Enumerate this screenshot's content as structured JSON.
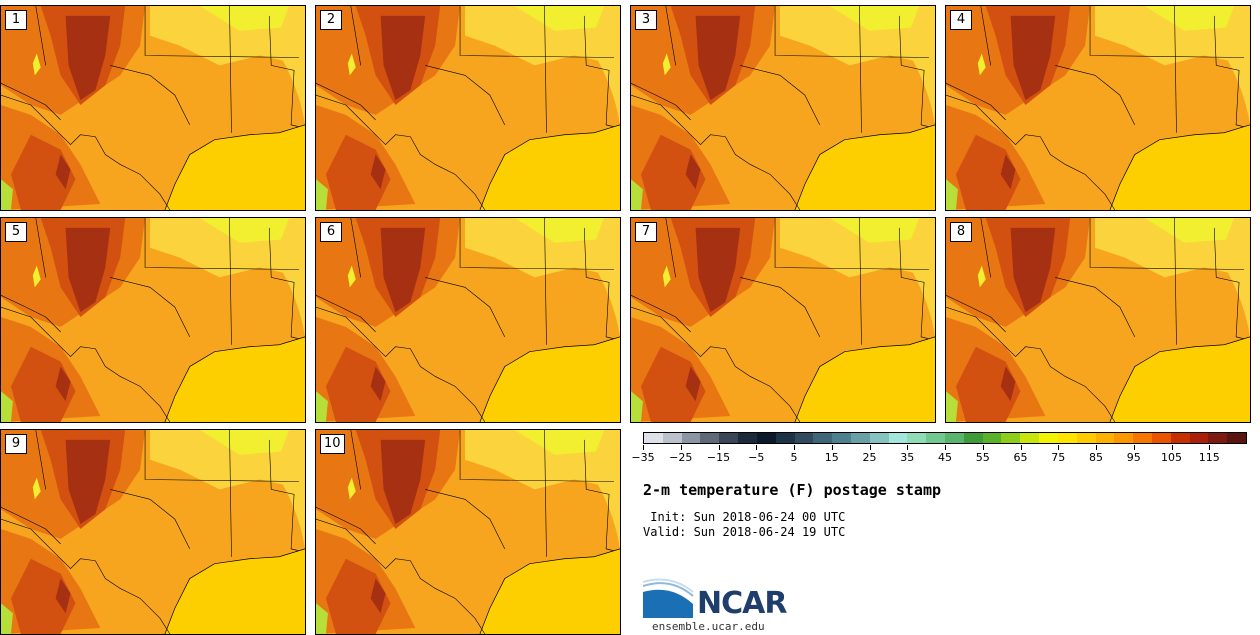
{
  "panels": [
    {
      "label": "1"
    },
    {
      "label": "2"
    },
    {
      "label": "3"
    },
    {
      "label": "4"
    },
    {
      "label": "5"
    },
    {
      "label": "6"
    },
    {
      "label": "7"
    },
    {
      "label": "8"
    },
    {
      "label": "9"
    },
    {
      "label": "10"
    }
  ],
  "colorbar": {
    "colors": [
      "#dfe1e8",
      "#bcc2cc",
      "#8c95a3",
      "#606978",
      "#3a4658",
      "#1d2a3c",
      "#0c1a2c",
      "#1d3346",
      "#2f4b5d",
      "#3f6676",
      "#4f8090",
      "#69a0a8",
      "#86c3c0",
      "#a2e6dc",
      "#8fdcb6",
      "#72c98f",
      "#58b56b",
      "#3f9a3a",
      "#5ab12a",
      "#8ece1b",
      "#c7e40d",
      "#f2f302",
      "#fde500",
      "#fecb00",
      "#fdb100",
      "#fd9700",
      "#f67600",
      "#ea5300",
      "#c63000",
      "#aa1e0a",
      "#7f1a10",
      "#5b150f"
    ],
    "tick_values": [
      "−35",
      "−25",
      "−15",
      "−5",
      "5",
      "15",
      "25",
      "35",
      "45",
      "55",
      "65",
      "75",
      "85",
      "95",
      "105",
      "115"
    ]
  },
  "title": "2-m temperature (F) postage stamp",
  "init_text": " Init: Sun 2018-06-24 00 UTC",
  "valid_text": "Valid: Sun 2018-06-24 19 UTC",
  "logo": {
    "name": "NCAR",
    "url": "ensemble.ucar.edu",
    "blue": "#1a6fb5",
    "navy": "#1f3e6b"
  },
  "map_colors": {
    "gulf": "#fdcf00",
    "base": "#f7a51e",
    "hot": "#e87713",
    "hotter": "#d25111",
    "hottest": "#a63012",
    "cool": "#fbd33c",
    "coolest": "#f2ee30",
    "green": "#b7df3a"
  }
}
